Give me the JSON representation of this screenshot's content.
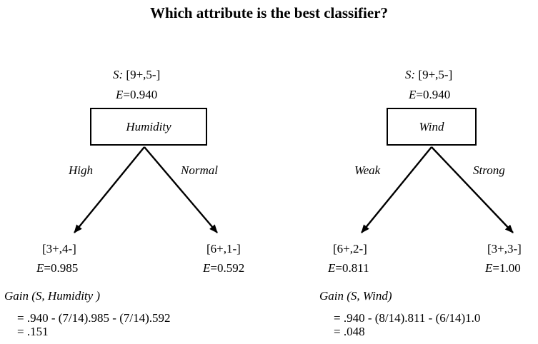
{
  "title": "Which attribute is the best classifier?",
  "left_tree": {
    "root_s_label": "S:",
    "root_s_value": "[9+,5-]",
    "root_e_label": "E",
    "root_e_value": "=0.940",
    "attribute": "Humidity",
    "branch_left": "High",
    "branch_right": "Normal",
    "leaf_left_counts": "[3+,4-]",
    "leaf_left_e_label": "E",
    "leaf_left_e_value": "=0.985",
    "leaf_right_counts": "[6+,1-]",
    "leaf_right_e_label": "E",
    "leaf_right_e_value": "=0.592",
    "gain_label": "Gain (S,  Humidity  )",
    "gain_line1": "= .940 - (7/14).985 - (7/14).592",
    "gain_line2": "= .151"
  },
  "right_tree": {
    "root_s_label": "S:",
    "root_s_value": "[9+,5-]",
    "root_e_label": "E",
    "root_e_value": "=0.940",
    "attribute": "Wind",
    "branch_left": "Weak",
    "branch_right": "Strong",
    "leaf_left_counts": "[6+,2-]",
    "leaf_left_e_label": "E",
    "leaf_left_e_value": "=0.811",
    "leaf_right_counts": "[3+,3-]",
    "leaf_right_e_label": "E",
    "leaf_right_e_value": "=1.00",
    "gain_label": "Gain (S, Wind)",
    "gain_line1": "= .940 - (8/14).811 - (6/14)1.0",
    "gain_line2": "= .048"
  }
}
